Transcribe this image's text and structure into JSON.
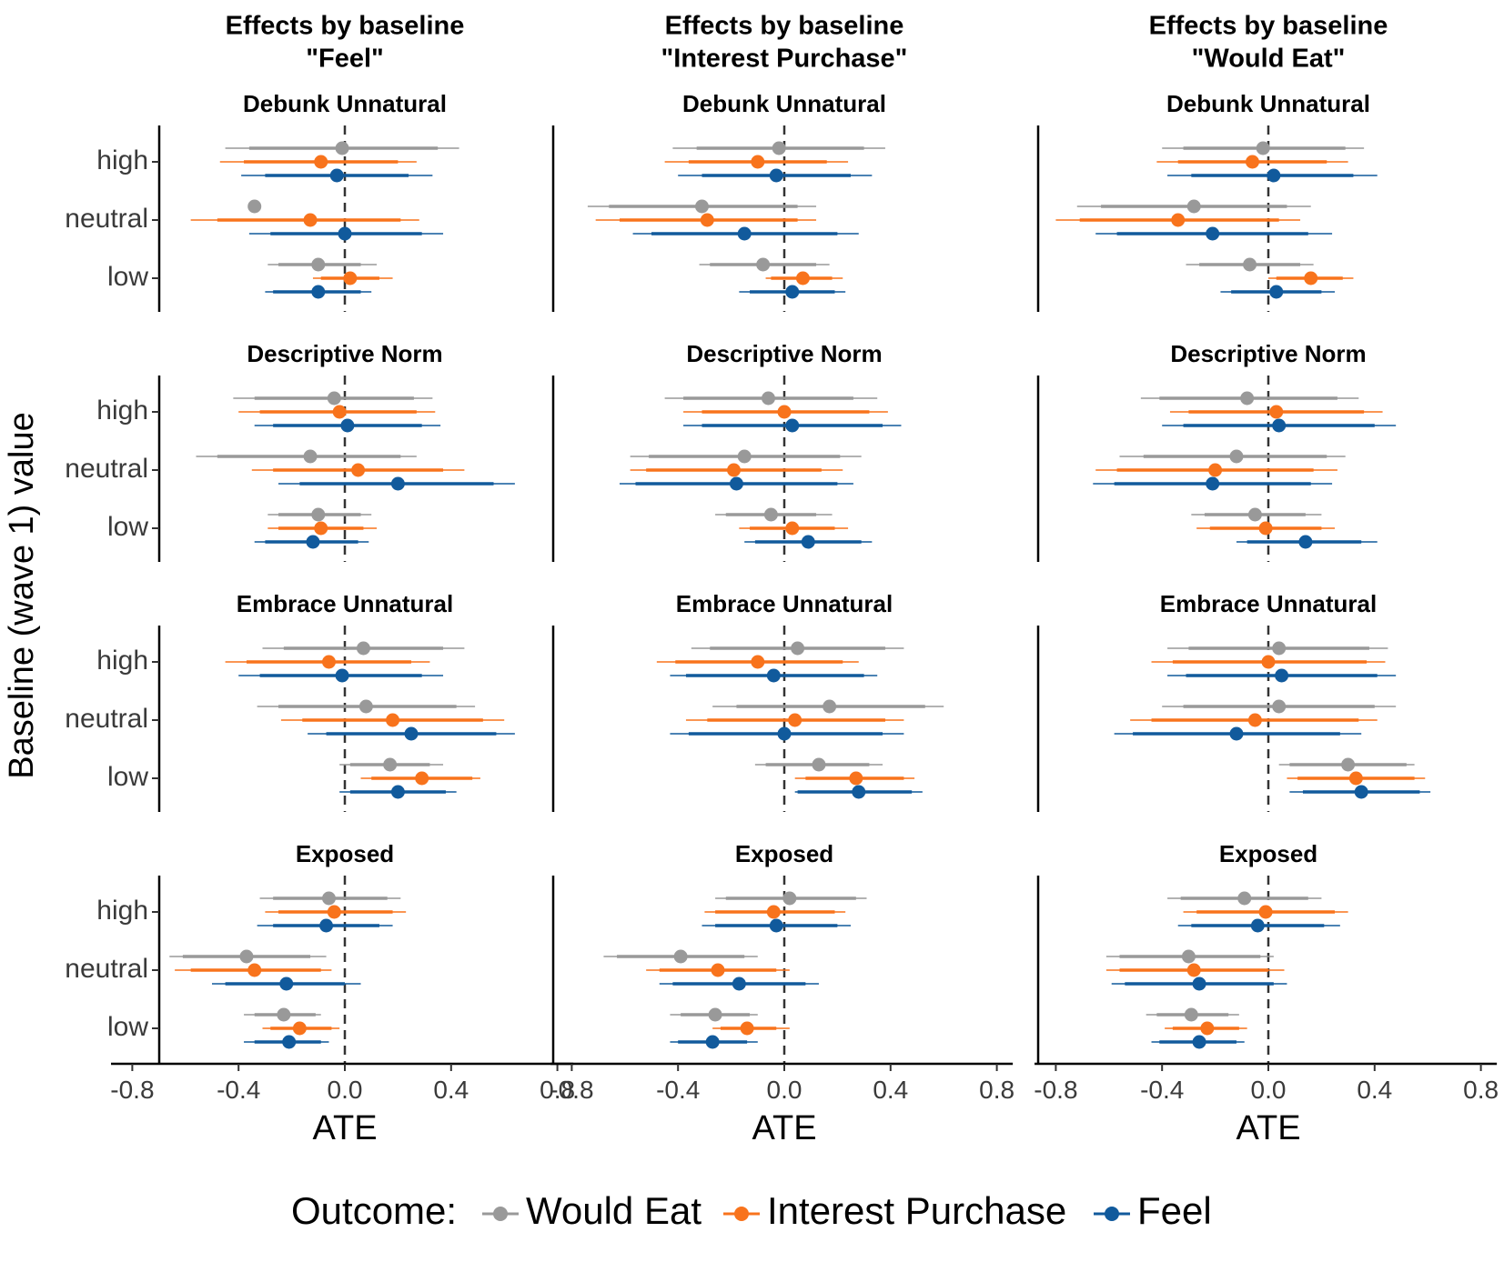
{
  "chart_data": {
    "type": "scatter",
    "subtype": "forest-plot-faceted",
    "y_axis_title": "Baseline (wave 1) value",
    "x_axis_title": "ATE",
    "x_ticks": [
      "-0.8",
      "-0.4",
      "0.0",
      "0.4",
      "0.8"
    ],
    "x_tick_values": [
      -0.8,
      -0.4,
      0.0,
      0.4,
      0.8
    ],
    "xlim": [
      -0.88,
      0.86
    ],
    "reference_line": 0,
    "y_categories": [
      "high",
      "neutral",
      "low"
    ],
    "columns": [
      "Effects by baseline\n\"Feel\"",
      "Effects by baseline\n\"Interest Purchase\"",
      "Effects by baseline\n\"Would Eat\""
    ],
    "rows": [
      "Debunk Unnatural",
      "Descriptive Norm",
      "Embrace Unnatural",
      "Exposed"
    ],
    "legend": {
      "title": "Outcome:",
      "position": "bottom",
      "entries": [
        {
          "name": "Would Eat",
          "color": "#999999"
        },
        {
          "name": "Interest Purchase",
          "color": "#F8731C"
        },
        {
          "name": "Feel",
          "color": "#115A9C"
        }
      ]
    },
    "series_order": [
      "Would Eat",
      "Interest Purchase",
      "Feel"
    ],
    "facets": [
      {
        "row": 0,
        "col": 0,
        "data": [
          [
            [
              -0.01,
              -0.36,
              0.35,
              -0.45,
              0.43
            ],
            [
              -0.09,
              -0.38,
              0.2,
              -0.47,
              0.27
            ],
            [
              -0.03,
              -0.3,
              0.24,
              -0.39,
              0.33
            ]
          ],
          [
            [
              -0.34,
              null,
              null,
              null,
              null
            ],
            [
              -0.13,
              -0.48,
              0.21,
              -0.58,
              0.28
            ],
            [
              0.0,
              -0.28,
              0.29,
              -0.36,
              0.37
            ]
          ],
          [
            [
              -0.1,
              -0.25,
              0.06,
              -0.29,
              0.12
            ],
            [
              0.02,
              -0.09,
              0.13,
              -0.12,
              0.18
            ],
            [
              -0.1,
              -0.27,
              0.06,
              -0.3,
              0.1
            ]
          ]
        ]
      },
      {
        "row": 0,
        "col": 1,
        "data": [
          [
            [
              -0.02,
              -0.33,
              0.3,
              -0.42,
              0.38
            ],
            [
              -0.1,
              -0.36,
              0.16,
              -0.45,
              0.24
            ],
            [
              -0.03,
              -0.31,
              0.25,
              -0.4,
              0.33
            ]
          ],
          [
            [
              -0.31,
              -0.66,
              0.05,
              -0.74,
              0.12
            ],
            [
              -0.29,
              -0.62,
              0.05,
              -0.71,
              0.12
            ],
            [
              -0.15,
              -0.5,
              0.2,
              -0.57,
              0.28
            ]
          ],
          [
            [
              -0.08,
              -0.28,
              0.12,
              -0.32,
              0.17
            ],
            [
              0.07,
              -0.05,
              0.18,
              -0.07,
              0.22
            ],
            [
              0.03,
              -0.13,
              0.19,
              -0.17,
              0.23
            ]
          ]
        ]
      },
      {
        "row": 0,
        "col": 2,
        "data": [
          [
            [
              -0.02,
              -0.32,
              0.29,
              -0.4,
              0.36
            ],
            [
              -0.06,
              -0.34,
              0.22,
              -0.42,
              0.3
            ],
            [
              0.02,
              -0.29,
              0.32,
              -0.38,
              0.41
            ]
          ],
          [
            [
              -0.28,
              -0.63,
              0.07,
              -0.72,
              0.16
            ],
            [
              -0.34,
              -0.71,
              0.04,
              -0.8,
              0.12
            ],
            [
              -0.21,
              -0.57,
              0.15,
              -0.65,
              0.24
            ]
          ],
          [
            [
              -0.07,
              -0.26,
              0.12,
              -0.31,
              0.17
            ],
            [
              0.16,
              0.03,
              0.28,
              0.0,
              0.32
            ],
            [
              0.03,
              -0.14,
              0.2,
              -0.18,
              0.25
            ]
          ]
        ]
      },
      {
        "row": 1,
        "col": 0,
        "data": [
          [
            [
              -0.04,
              -0.34,
              0.26,
              -0.42,
              0.33
            ],
            [
              -0.02,
              -0.32,
              0.27,
              -0.4,
              0.34
            ],
            [
              0.01,
              -0.27,
              0.29,
              -0.34,
              0.36
            ]
          ],
          [
            [
              -0.13,
              -0.48,
              0.21,
              -0.56,
              0.27
            ],
            [
              0.05,
              -0.27,
              0.37,
              -0.35,
              0.45
            ],
            [
              0.2,
              -0.17,
              0.56,
              -0.25,
              0.64
            ]
          ],
          [
            [
              -0.1,
              -0.25,
              0.06,
              -0.29,
              0.1
            ],
            [
              -0.09,
              -0.25,
              0.07,
              -0.29,
              0.12
            ],
            [
              -0.12,
              -0.3,
              0.05,
              -0.34,
              0.09
            ]
          ]
        ]
      },
      {
        "row": 1,
        "col": 1,
        "data": [
          [
            [
              -0.06,
              -0.38,
              0.26,
              -0.45,
              0.35
            ],
            [
              0.0,
              -0.31,
              0.32,
              -0.38,
              0.39
            ],
            [
              0.03,
              -0.31,
              0.37,
              -0.38,
              0.44
            ]
          ],
          [
            [
              -0.15,
              -0.51,
              0.21,
              -0.58,
              0.29
            ],
            [
              -0.19,
              -0.52,
              0.14,
              -0.58,
              0.22
            ],
            [
              -0.18,
              -0.56,
              0.2,
              -0.62,
              0.26
            ]
          ],
          [
            [
              -0.05,
              -0.22,
              0.12,
              -0.26,
              0.18
            ],
            [
              0.03,
              -0.13,
              0.19,
              -0.17,
              0.24
            ],
            [
              0.09,
              -0.11,
              0.29,
              -0.15,
              0.33
            ]
          ]
        ]
      },
      {
        "row": 1,
        "col": 2,
        "data": [
          [
            [
              -0.08,
              -0.41,
              0.26,
              -0.48,
              0.34
            ],
            [
              0.03,
              -0.3,
              0.36,
              -0.37,
              0.43
            ],
            [
              0.04,
              -0.32,
              0.4,
              -0.4,
              0.48
            ]
          ],
          [
            [
              -0.12,
              -0.47,
              0.22,
              -0.56,
              0.29
            ],
            [
              -0.2,
              -0.57,
              0.17,
              -0.65,
              0.26
            ],
            [
              -0.21,
              -0.58,
              0.16,
              -0.66,
              0.24
            ]
          ],
          [
            [
              -0.05,
              -0.24,
              0.14,
              -0.29,
              0.2
            ],
            [
              -0.01,
              -0.22,
              0.2,
              -0.27,
              0.25
            ],
            [
              0.14,
              -0.08,
              0.35,
              -0.12,
              0.41
            ]
          ]
        ]
      },
      {
        "row": 2,
        "col": 0,
        "data": [
          [
            [
              0.07,
              -0.23,
              0.37,
              -0.31,
              0.45
            ],
            [
              -0.06,
              -0.37,
              0.25,
              -0.45,
              0.32
            ],
            [
              -0.01,
              -0.32,
              0.29,
              -0.4,
              0.37
            ]
          ],
          [
            [
              0.08,
              -0.25,
              0.42,
              -0.33,
              0.49
            ],
            [
              0.18,
              -0.16,
              0.52,
              -0.24,
              0.6
            ],
            [
              0.25,
              -0.07,
              0.57,
              -0.14,
              0.64
            ]
          ],
          [
            [
              0.17,
              0.02,
              0.32,
              -0.02,
              0.37
            ],
            [
              0.29,
              0.1,
              0.48,
              0.06,
              0.51
            ],
            [
              0.2,
              0.02,
              0.38,
              -0.02,
              0.42
            ]
          ]
        ]
      },
      {
        "row": 2,
        "col": 1,
        "data": [
          [
            [
              0.05,
              -0.28,
              0.38,
              -0.35,
              0.45
            ],
            [
              -0.1,
              -0.41,
              0.22,
              -0.48,
              0.28
            ],
            [
              -0.04,
              -0.37,
              0.3,
              -0.43,
              0.35
            ]
          ],
          [
            [
              0.17,
              -0.18,
              0.53,
              -0.27,
              0.6
            ],
            [
              0.04,
              -0.29,
              0.38,
              -0.37,
              0.45
            ],
            [
              0.0,
              -0.36,
              0.37,
              -0.43,
              0.45
            ]
          ],
          [
            [
              0.13,
              -0.07,
              0.32,
              -0.11,
              0.37
            ],
            [
              0.27,
              0.08,
              0.45,
              0.04,
              0.49
            ],
            [
              0.28,
              0.05,
              0.48,
              0.04,
              0.52
            ]
          ]
        ]
      },
      {
        "row": 2,
        "col": 2,
        "data": [
          [
            [
              0.04,
              -0.3,
              0.38,
              -0.38,
              0.45
            ],
            [
              0.0,
              -0.36,
              0.37,
              -0.44,
              0.44
            ],
            [
              0.05,
              -0.31,
              0.41,
              -0.38,
              0.48
            ]
          ],
          [
            [
              0.04,
              -0.32,
              0.4,
              -0.4,
              0.48
            ],
            [
              -0.05,
              -0.44,
              0.34,
              -0.52,
              0.41
            ],
            [
              -0.12,
              -0.51,
              0.27,
              -0.58,
              0.35
            ]
          ],
          [
            [
              0.3,
              0.08,
              0.52,
              0.04,
              0.55
            ],
            [
              0.33,
              0.11,
              0.55,
              0.07,
              0.59
            ],
            [
              0.35,
              0.13,
              0.57,
              0.08,
              0.61
            ]
          ]
        ]
      },
      {
        "row": 3,
        "col": 0,
        "data": [
          [
            [
              -0.06,
              -0.27,
              0.16,
              -0.32,
              0.21
            ],
            [
              -0.04,
              -0.25,
              0.18,
              -0.3,
              0.23
            ],
            [
              -0.07,
              -0.27,
              0.13,
              -0.33,
              0.18
            ]
          ],
          [
            [
              -0.37,
              -0.61,
              -0.13,
              -0.66,
              -0.07
            ],
            [
              -0.34,
              -0.58,
              -0.09,
              -0.64,
              -0.05
            ],
            [
              -0.22,
              -0.45,
              0.0,
              -0.5,
              0.06
            ]
          ],
          [
            [
              -0.23,
              -0.34,
              -0.11,
              -0.38,
              -0.09
            ],
            [
              -0.17,
              -0.28,
              -0.05,
              -0.31,
              -0.02
            ],
            [
              -0.21,
              -0.34,
              -0.09,
              -0.38,
              -0.06
            ]
          ]
        ]
      },
      {
        "row": 3,
        "col": 1,
        "data": [
          [
            [
              0.02,
              -0.22,
              0.27,
              -0.26,
              0.31
            ],
            [
              -0.04,
              -0.26,
              0.19,
              -0.3,
              0.23
            ],
            [
              -0.03,
              -0.26,
              0.2,
              -0.31,
              0.25
            ]
          ],
          [
            [
              -0.39,
              -0.63,
              -0.15,
              -0.68,
              -0.1
            ],
            [
              -0.25,
              -0.47,
              -0.03,
              -0.52,
              0.02
            ],
            [
              -0.17,
              -0.42,
              0.08,
              -0.47,
              0.13
            ]
          ],
          [
            [
              -0.26,
              -0.39,
              -0.13,
              -0.43,
              -0.1
            ],
            [
              -0.14,
              -0.24,
              -0.03,
              -0.27,
              0.02
            ],
            [
              -0.27,
              -0.4,
              -0.14,
              -0.43,
              -0.1
            ]
          ]
        ]
      },
      {
        "row": 3,
        "col": 2,
        "data": [
          [
            [
              -0.09,
              -0.33,
              0.15,
              -0.38,
              0.2
            ],
            [
              -0.01,
              -0.27,
              0.25,
              -0.32,
              0.3
            ],
            [
              -0.04,
              -0.29,
              0.21,
              -0.34,
              0.27
            ]
          ],
          [
            [
              -0.3,
              -0.56,
              -0.03,
              -0.61,
              0.02
            ],
            [
              -0.28,
              -0.56,
              0.0,
              -0.61,
              0.06
            ],
            [
              -0.26,
              -0.54,
              0.02,
              -0.59,
              0.07
            ]
          ],
          [
            [
              -0.29,
              -0.42,
              -0.15,
              -0.46,
              -0.11
            ],
            [
              -0.23,
              -0.36,
              -0.11,
              -0.39,
              -0.08
            ],
            [
              -0.26,
              -0.41,
              -0.12,
              -0.44,
              -0.09
            ]
          ]
        ]
      }
    ]
  }
}
